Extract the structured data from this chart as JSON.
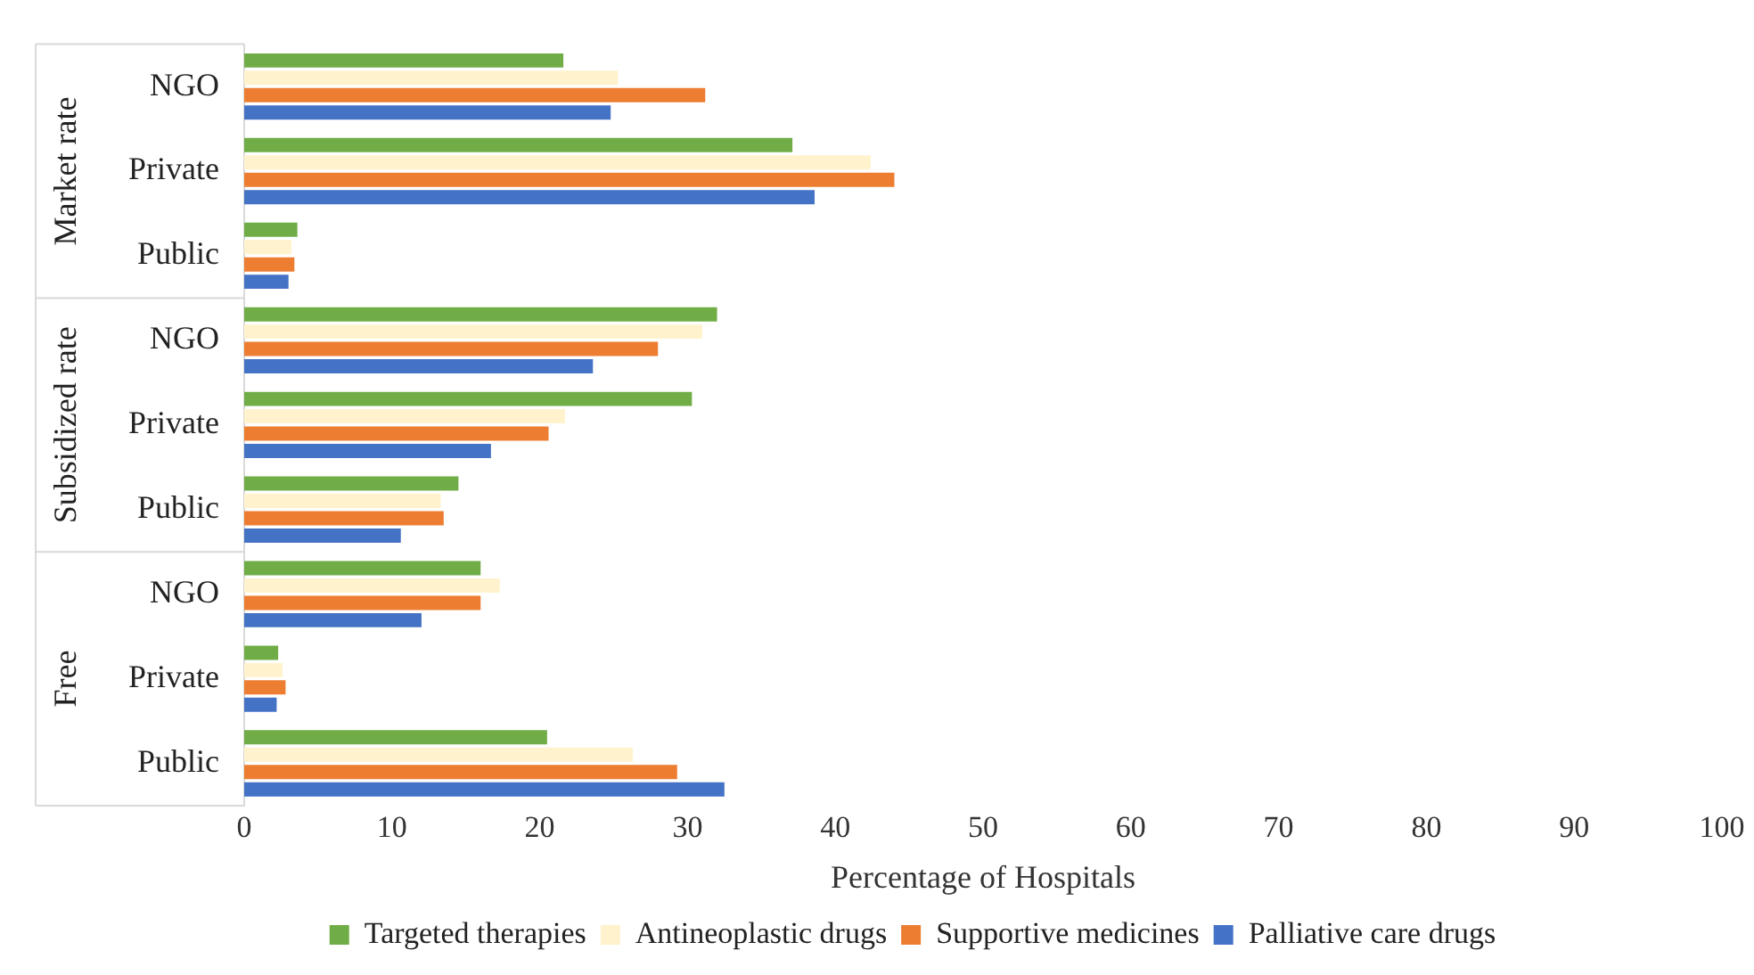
{
  "chart_data": {
    "type": "bar",
    "orientation": "horizontal",
    "xlabel": "Percentage of Hospitals",
    "categories": [
      "NGO",
      "Private",
      "Public",
      "NGO",
      "Private",
      "Public",
      "NGO",
      "Private",
      "Public"
    ],
    "annotations": [
      "Market rate",
      "Subsidized rate",
      "Free"
    ],
    "series": [
      {
        "name": "Targeted therapies",
        "color": "#70ad47",
        "values": [
          21.6,
          37.1,
          3.6,
          32.0,
          30.3,
          14.5,
          16.0,
          2.3,
          20.5
        ]
      },
      {
        "name": "Antineoplastic drugs",
        "color": "#fff2cc",
        "values": [
          25.3,
          42.4,
          3.2,
          31.0,
          21.7,
          13.3,
          17.3,
          2.6,
          26.3
        ]
      },
      {
        "name": "Supportive medicines",
        "color": "#ed7d31",
        "values": [
          31.2,
          44.0,
          3.4,
          28.0,
          20.6,
          13.5,
          16.0,
          2.8,
          29.3
        ]
      },
      {
        "name": "Palliative care drugs",
        "color": "#4472c4",
        "values": [
          24.8,
          38.6,
          3.0,
          23.6,
          16.7,
          10.6,
          12.0,
          2.2,
          32.5
        ]
      }
    ],
    "xlim": [
      0,
      100
    ],
    "xticks": [
      0,
      10,
      20,
      30,
      40,
      50,
      60,
      70,
      80,
      90,
      100
    ],
    "grid": false,
    "legend": "bottom"
  }
}
